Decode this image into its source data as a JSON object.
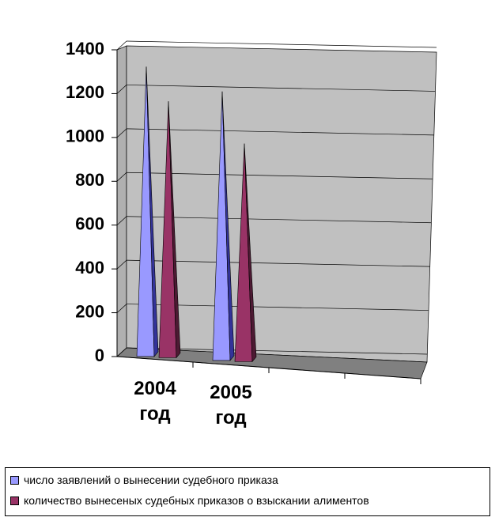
{
  "chart_data": {
    "type": "pyramid3d",
    "categories": [
      "2004 год",
      "2005 год",
      null,
      null
    ],
    "series": [
      {
        "name": "число заявлений о вынесении судебного приказа",
        "color": "#9999ff",
        "values": [
          1320,
          1200,
          null,
          null
        ]
      },
      {
        "name": "количество вынесеных судебных приказов о взыскании алиментов",
        "color": "#993366",
        "values": [
          1160,
          960,
          null,
          null
        ]
      }
    ],
    "ylim": [
      0,
      1400
    ],
    "yticks": [
      0,
      200,
      400,
      600,
      800,
      1000,
      1200,
      1400
    ],
    "grid": true
  }
}
